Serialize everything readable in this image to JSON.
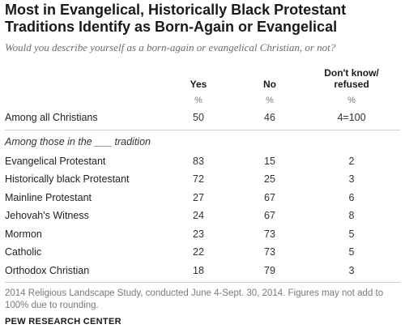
{
  "title": "Most in Evangelical, Historically Black Protestant Traditions Identify as Born-Again or Evangelical",
  "subtitle": "Would you describe yourself as a born-again or evangelical Christian, or not?",
  "columns": [
    "Yes",
    "No",
    "Don't know/ refused"
  ],
  "unit": "%",
  "total_row": {
    "label": "Among all Christians",
    "values": [
      "50",
      "46",
      "4=100"
    ]
  },
  "section_label": "Among those in the ___ tradition",
  "rows": [
    {
      "label": "Evangelical Protestant",
      "values": [
        "83",
        "15",
        "2"
      ]
    },
    {
      "label": "Historically black Protestant",
      "values": [
        "72",
        "25",
        "3"
      ]
    },
    {
      "label": "Mainline Protestant",
      "values": [
        "27",
        "67",
        "6"
      ]
    },
    {
      "label": "Jehovah's Witness",
      "values": [
        "24",
        "67",
        "8"
      ]
    },
    {
      "label": "Mormon",
      "values": [
        "23",
        "73",
        "5"
      ]
    },
    {
      "label": "Catholic",
      "values": [
        "22",
        "73",
        "5"
      ]
    },
    {
      "label": "Orthodox Christian",
      "values": [
        "18",
        "79",
        "3"
      ]
    }
  ],
  "note": "2014 Religious Landscape Study, conducted June 4-Sept. 30, 2014. Figures may not add to 100% due to rounding.",
  "source": "PEW RESEARCH CENTER",
  "chart_data": {
    "type": "table",
    "title": "Most in Evangelical, Historically Black Protestant Traditions Identify as Born-Again or Evangelical",
    "subtitle": "Would you describe yourself as a born-again or evangelical Christian, or not?",
    "columns": [
      "Yes",
      "No",
      "Don't know/ refused"
    ],
    "categories": [
      "Among all Christians",
      "Evangelical Protestant",
      "Historically black Protestant",
      "Mainline Protestant",
      "Jehovah's Witness",
      "Mormon",
      "Catholic",
      "Orthodox Christian"
    ],
    "series": [
      {
        "name": "Yes",
        "values": [
          50,
          83,
          72,
          27,
          24,
          23,
          22,
          18
        ]
      },
      {
        "name": "No",
        "values": [
          46,
          15,
          25,
          67,
          67,
          73,
          73,
          79
        ]
      },
      {
        "name": "Don't know/ refused",
        "values": [
          4,
          2,
          3,
          6,
          8,
          5,
          5,
          3
        ]
      }
    ]
  }
}
